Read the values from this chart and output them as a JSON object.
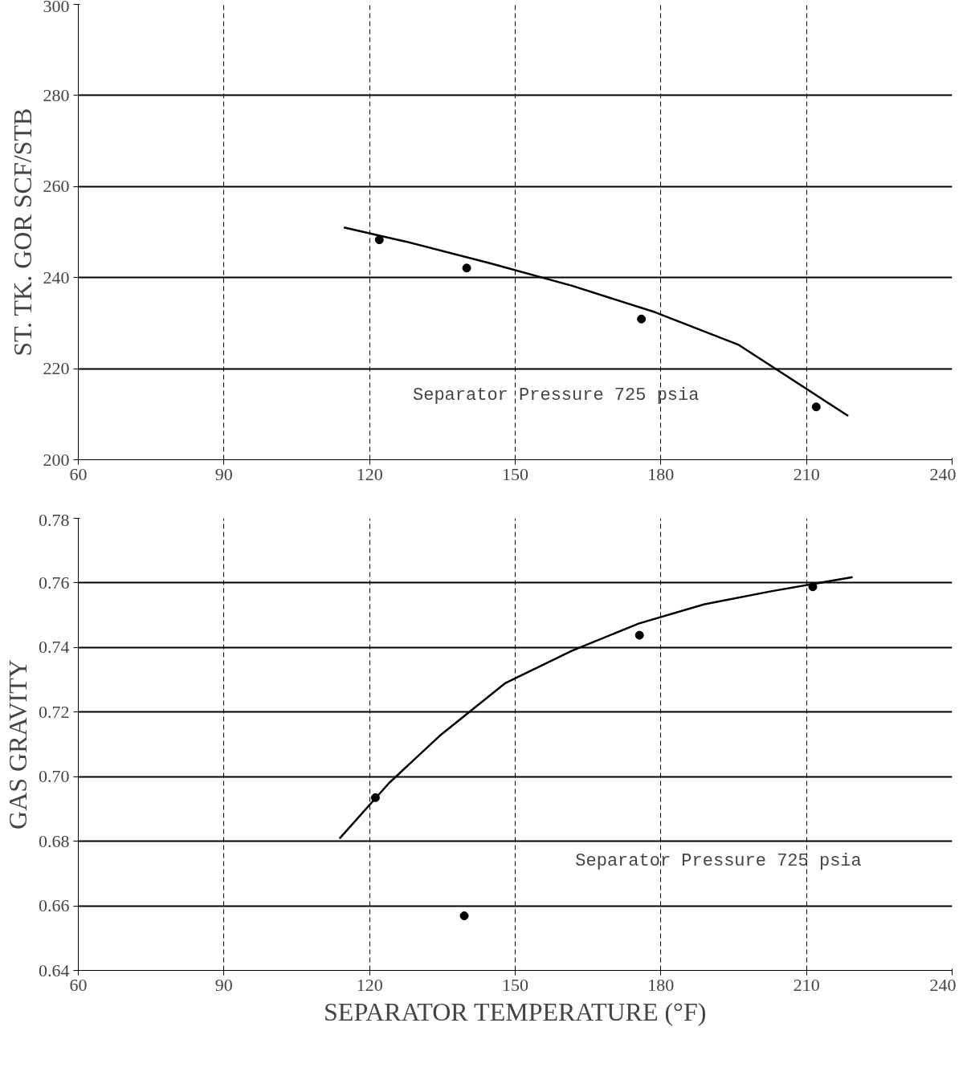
{
  "chart_data": [
    {
      "type": "scatter",
      "ylabel": "ST. TK. GOR SCF/STB",
      "annotations": [
        "Separator Pressure 725 psia"
      ],
      "xlim": [
        60,
        240
      ],
      "ylim": [
        200,
        300
      ],
      "xticks": [
        60,
        90,
        120,
        150,
        180,
        210,
        240
      ],
      "yticks": [
        200,
        220,
        240,
        260,
        280,
        300
      ],
      "grid": true,
      "marker": "circle",
      "series": [
        {
          "color": "#000000",
          "x": [
            122,
            140,
            176,
            212
          ],
          "values": [
            248.3,
            242.1,
            230.9,
            211.6
          ]
        },
        {
          "type": "line",
          "color": "#000000",
          "line_style": "solid",
          "marker": "none",
          "x": [
            114.7,
            127.5,
            144.6,
            161.7,
            178.8,
            195.9,
            218.6
          ],
          "values": [
            251.0,
            247.9,
            243.2,
            238.2,
            232.4,
            225.3,
            209.6
          ]
        }
      ]
    },
    {
      "type": "scatter",
      "xlabel": "SEPARATOR TEMPERATURE (°F)",
      "ylabel": "GAS GRAVITY",
      "annotations": [
        "Separator Pressure 725 psia"
      ],
      "xlim": [
        60,
        240
      ],
      "ylim": [
        0.64,
        0.78
      ],
      "xticks": [
        60,
        90,
        120,
        150,
        180,
        210,
        240
      ],
      "yticks": [
        {
          "value": 0.64,
          "label": "0.64"
        },
        {
          "value": 0.66,
          "label": "0.66"
        },
        {
          "value": 0.68,
          "label": "0.68"
        },
        {
          "value": 0.7,
          "label": "0.70"
        },
        {
          "value": 0.72,
          "label": "0.72"
        },
        {
          "value": 0.74,
          "label": "0.74"
        },
        {
          "value": 0.76,
          "label": "0.76"
        },
        {
          "value": 0.78,
          "label": "0.78"
        }
      ],
      "grid": true,
      "marker": "circle",
      "series": [
        {
          "color": "#000000",
          "x": [
            121.2,
            139.5,
            175.6,
            211.3
          ],
          "values": [
            0.6935,
            0.6569,
            0.7438,
            0.7588
          ]
        },
        {
          "type": "line",
          "color": "#000000",
          "line_style": "solid",
          "marker": "none",
          "x": [
            113.8,
            124,
            134.4,
            148,
            161.7,
            175.4,
            189,
            202.7,
            219.5
          ],
          "values": [
            0.6808,
            0.698,
            0.7126,
            0.729,
            0.739,
            0.7474,
            0.7534,
            0.7574,
            0.7618
          ]
        }
      ]
    }
  ]
}
